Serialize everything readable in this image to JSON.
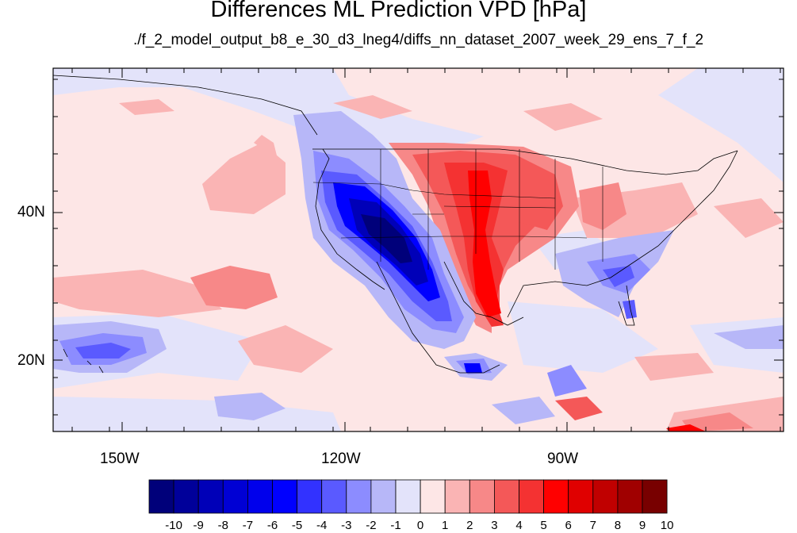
{
  "title": "Differences ML Prediction VPD [hPa]",
  "subtitle": "./f_2_model_output_b8_e_30_d3_lneg4/diffs_nn_dataset_2007_week_29_ens_7_f_2",
  "map": {
    "lon_range": [
      -160,
      -60
    ],
    "lat_range": [
      10,
      60
    ],
    "x_ticks": [
      "150W",
      "120W",
      "90W"
    ],
    "y_ticks": [
      "40N",
      "20N"
    ],
    "background_level": 0
  },
  "colorbar": {
    "labels": [
      "-10",
      "-9",
      "-8",
      "-7",
      "-6",
      "-5",
      "-4",
      "-3",
      "-2",
      "-1",
      "0",
      "1",
      "2",
      "3",
      "4",
      "5",
      "6",
      "7",
      "8",
      "9",
      "10"
    ],
    "colors": [
      "#00007a",
      "#00009a",
      "#0000b8",
      "#0000d4",
      "#0000ec",
      "#0000ff",
      "#3232ff",
      "#5a5aff",
      "#8c8cff",
      "#b7b7f8",
      "#e3e3fa",
      "#fde6e6",
      "#fab4b4",
      "#f78888",
      "#f45858",
      "#f43232",
      "#ff0000",
      "#e00000",
      "#c00000",
      "#a00000",
      "#780000"
    ]
  }
}
